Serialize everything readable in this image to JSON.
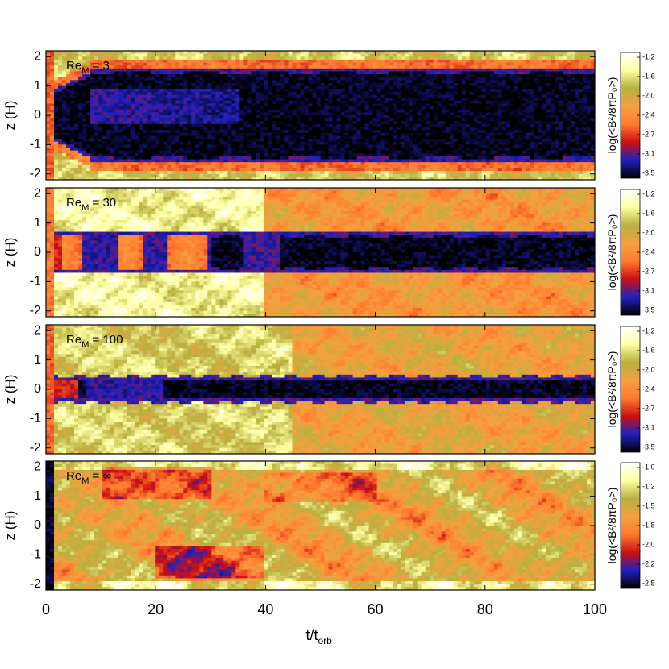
{
  "chart_data": {
    "type": "heatmap",
    "title": "",
    "xlabel": "t/t",
    "xlabel_sub": "orb",
    "xlim": [
      0,
      100
    ],
    "xticks": [
      "0",
      "20",
      "40",
      "60",
      "80",
      "100"
    ],
    "shared_x": true,
    "panels": [
      {
        "name": "Re_M = 3",
        "title_main": "Re",
        "title_sub": "M",
        "title_value": " = 3",
        "ylabel": "z (H)",
        "ylim": [
          -2.2,
          2.2
        ],
        "yticks": [
          "2",
          "1",
          "0",
          "-1",
          "-2"
        ],
        "colorbar_label": "log(<B²/8πP₀>)",
        "colorbar_ticks": [
          "-1.2",
          "-1.6",
          "-2.0",
          "-2.4",
          "-2.7",
          "-3.1",
          "-3.5"
        ],
        "colorbar_range": [
          -3.5,
          -1.2
        ],
        "colormap": [
          "#000000",
          "#2020c0",
          "#cc1010",
          "#ff7a30",
          "#f5a040",
          "#b8b040",
          "#ffffa0",
          "#ffffff"
        ],
        "description_profile": "quiet_core"
      },
      {
        "name": "Re_M = 30",
        "title_main": "Re",
        "title_sub": "M",
        "title_value": " = 30",
        "ylabel": "z (H)",
        "ylim": [
          -2.2,
          2.2
        ],
        "yticks": [
          "2",
          "1",
          "0",
          "-1",
          "-2"
        ],
        "colorbar_label": "log(<B²/8πP₀>)",
        "colorbar_ticks": [
          "-1.2",
          "-1.6",
          "-2.0",
          "-2.4",
          "-2.7",
          "-3.1",
          "-3.5"
        ],
        "colorbar_range": [
          -3.5,
          -1.2
        ],
        "colormap": [
          "#000000",
          "#2020c0",
          "#cc1010",
          "#ff7a30",
          "#f5a040",
          "#b8b040",
          "#ffffa0",
          "#ffffff"
        ],
        "description_profile": "wide_core"
      },
      {
        "name": "Re_M = 100",
        "title_main": "Re",
        "title_sub": "M",
        "title_value": " = 100",
        "ylabel": "z (H)",
        "ylim": [
          -2.2,
          2.2
        ],
        "yticks": [
          "2",
          "1",
          "0",
          "-1",
          "-2"
        ],
        "colorbar_label": "log(<B²/8πP₀>)",
        "colorbar_ticks": [
          "-1.2",
          "-1.6",
          "-2.0",
          "-2.4",
          "-2.7",
          "-3.1",
          "-3.5"
        ],
        "colorbar_range": [
          -3.5,
          -1.2
        ],
        "colormap": [
          "#000000",
          "#2020c0",
          "#cc1010",
          "#ff7a30",
          "#f5a040",
          "#b8b040",
          "#ffffa0",
          "#ffffff"
        ],
        "description_profile": "thin_core"
      },
      {
        "name": "Re_M = ∞",
        "title_main": "Re",
        "title_sub": "M",
        "title_value": " = ∞",
        "ylabel": "z (H)",
        "ylim": [
          -2.2,
          2.2
        ],
        "yticks": [
          "2",
          "1",
          "0",
          "-1",
          "-2"
        ],
        "colorbar_label": "log(<B²/8πP₀>)",
        "colorbar_ticks": [
          "-1.0",
          "-1.2",
          "-1.5",
          "-1.8",
          "-2.0",
          "-2.2",
          "-2.5"
        ],
        "colorbar_range": [
          -2.5,
          -1.0
        ],
        "colormap": [
          "#000000",
          "#2020c0",
          "#cc1010",
          "#ff7a30",
          "#f5a040",
          "#b8b040",
          "#ffffa0",
          "#ffffff"
        ],
        "description_profile": "turbulent"
      }
    ]
  }
}
